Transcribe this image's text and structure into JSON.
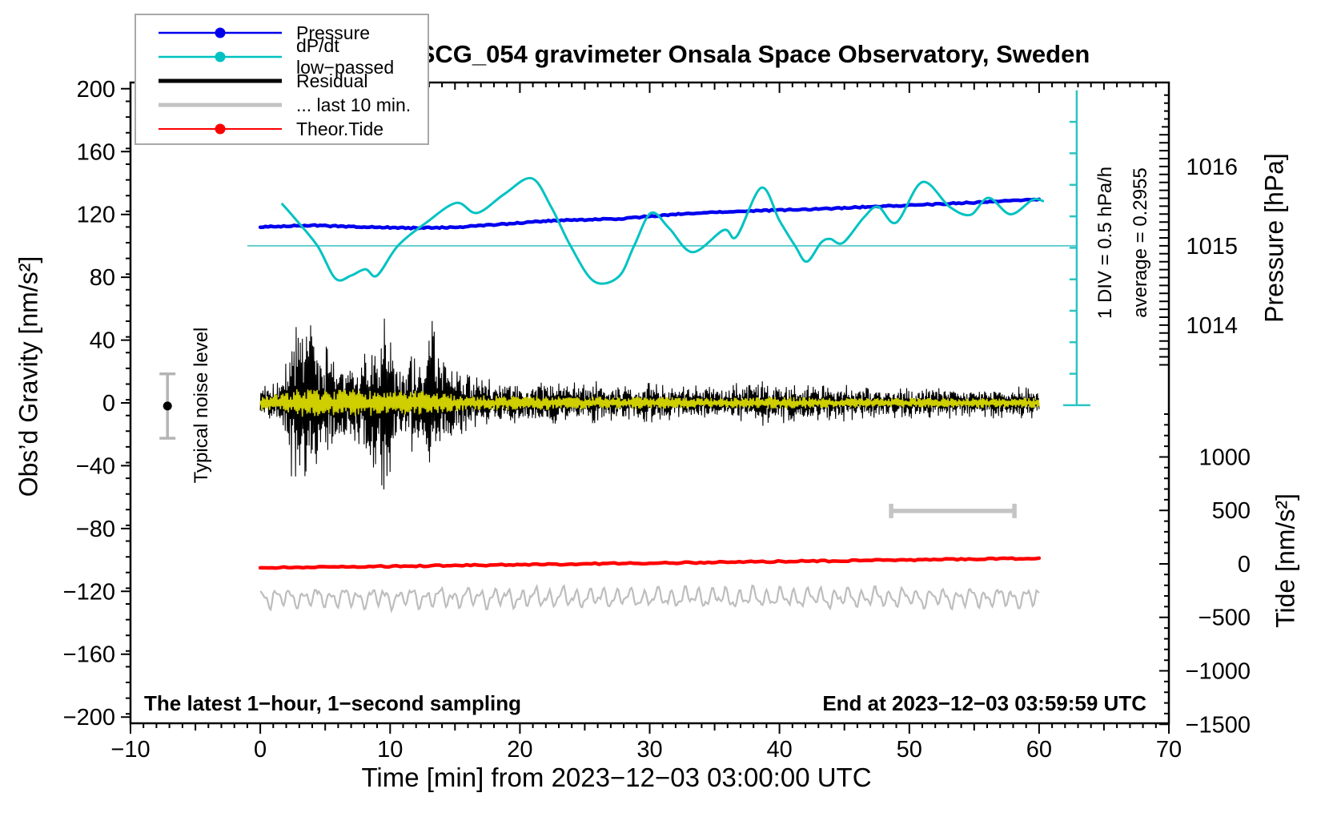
{
  "title": "SCG_054 gravimeter Onsala Space Observatory, Sweden",
  "annotations": {
    "sampling": "The latest 1−hour, 1−second sampling",
    "end_time": "End at 2023−12−03 03:59:59 UTC",
    "div_scale": "1 DIV = 0.5 hPa/h",
    "average": "average = 0.2955",
    "noise_label": "Typical noise level"
  },
  "legend": {
    "items": [
      {
        "label": "Pressure",
        "color": "#0000ee",
        "width": 2.5,
        "dot": true
      },
      {
        "label": "dP/dt low−passed",
        "color": "#00c2c2",
        "width": 2.5,
        "dot": true
      },
      {
        "label": "Residual",
        "color": "#000000",
        "width": 5,
        "dot": false
      },
      {
        "label": "... last 10 min.",
        "color": "#c3c3c3",
        "width": 5,
        "dot": false
      },
      {
        "label": "Theor.Tide",
        "color": "#ff0000",
        "width": 2,
        "dot": true
      }
    ]
  },
  "chart_data": {
    "type": "line",
    "title": "SCG_054 gravimeter Onsala Space Observatory, Sweden",
    "xlabel": "Time [min] from 2023−12−03 03:00:00 UTC",
    "x_axis": {
      "min": -10,
      "max": 70,
      "majors": [
        -10,
        0,
        10,
        20,
        30,
        40,
        50,
        60,
        70
      ],
      "medium_step": 5,
      "minor_step": 1
    },
    "gravity_axis": {
      "label": "Obs’d Gravity [nm/s²]",
      "min": -204,
      "max": 204,
      "majors": [
        -200,
        -160,
        -120,
        -80,
        -40,
        0,
        40,
        80,
        120,
        160,
        200
      ],
      "minor_step": 10
    },
    "pressure_axis": {
      "label": "Pressure [hPa]",
      "majors": [
        1016,
        1015,
        1014
      ],
      "minor_step": 0.1,
      "medium_step": 0.5,
      "minor_min": 1013.5,
      "minor_max": 1016.9,
      "anchor_value": 1015,
      "anchor_gravity": 100,
      "gravity_per_hpa": 50.5
    },
    "tide_axis": {
      "label": "Tide [nm/s²]",
      "majors": [
        1000,
        500,
        0,
        -500,
        -1000,
        -1500
      ],
      "minor_step": 100,
      "minor_min": -1400,
      "minor_max": 1400,
      "anchor_value": 0,
      "anchor_gravity": -102.5,
      "gravity_per_unit": 0.0681
    },
    "series": {
      "pressure": {
        "name": "Pressure",
        "color": "#0000ee",
        "width": 4.5,
        "unit": "hPa",
        "points": [
          [
            0,
            1015.238
          ],
          [
            2,
            1015.248
          ],
          [
            4,
            1015.257
          ],
          [
            6,
            1015.248
          ],
          [
            8,
            1015.238
          ],
          [
            10,
            1015.23
          ],
          [
            12,
            1015.224
          ],
          [
            14,
            1015.23
          ],
          [
            16,
            1015.244
          ],
          [
            18,
            1015.265
          ],
          [
            20,
            1015.289
          ],
          [
            22,
            1015.313
          ],
          [
            24,
            1015.325
          ],
          [
            26,
            1015.333
          ],
          [
            28,
            1015.343
          ],
          [
            30,
            1015.372
          ],
          [
            32,
            1015.396
          ],
          [
            34,
            1015.416
          ],
          [
            36,
            1015.426
          ],
          [
            38,
            1015.44
          ],
          [
            40,
            1015.451
          ],
          [
            42,
            1015.459
          ],
          [
            44,
            1015.471
          ],
          [
            46,
            1015.485
          ],
          [
            48,
            1015.499
          ],
          [
            50,
            1015.511
          ],
          [
            52,
            1015.525
          ],
          [
            54,
            1015.539
          ],
          [
            56,
            1015.554
          ],
          [
            58,
            1015.57
          ],
          [
            59,
            1015.578
          ],
          [
            60,
            1015.586
          ]
        ]
      },
      "dpdt": {
        "name": "dP/dt low−passed",
        "color": "#00c2c2",
        "width": 3,
        "unit": "hPa/h",
        "zero_gravity": 100,
        "gravity_per_hpa_per_h": 40.2,
        "points": [
          [
            1.7,
            0.66
          ],
          [
            2.6,
            0.45
          ],
          [
            4.4,
            0.0
          ],
          [
            5.8,
            -0.52
          ],
          [
            7.0,
            -0.47
          ],
          [
            8.1,
            -0.37
          ],
          [
            9.0,
            -0.47
          ],
          [
            10.6,
            0.0
          ],
          [
            12.8,
            0.37
          ],
          [
            15.1,
            0.68
          ],
          [
            16.7,
            0.52
          ],
          [
            18.8,
            0.82
          ],
          [
            20.9,
            1.07
          ],
          [
            22.4,
            0.62
          ],
          [
            23.9,
            0.0
          ],
          [
            25.7,
            -0.56
          ],
          [
            27.6,
            -0.49
          ],
          [
            28.8,
            0.0
          ],
          [
            30.1,
            0.52
          ],
          [
            31.5,
            0.28
          ],
          [
            33.3,
            -0.1
          ],
          [
            35.7,
            0.25
          ],
          [
            36.7,
            0.15
          ],
          [
            38.6,
            0.92
          ],
          [
            40.0,
            0.4
          ],
          [
            41.2,
            0.0
          ],
          [
            42.1,
            -0.25
          ],
          [
            43.2,
            0.05
          ],
          [
            43.9,
            0.11
          ],
          [
            44.9,
            0.05
          ],
          [
            46.5,
            0.45
          ],
          [
            47.6,
            0.62
          ],
          [
            49.0,
            0.37
          ],
          [
            51.0,
            1.01
          ],
          [
            53.1,
            0.62
          ],
          [
            54.7,
            0.49
          ],
          [
            56.1,
            0.76
          ],
          [
            57.8,
            0.5
          ],
          [
            59.5,
            0.73
          ],
          [
            60.3,
            0.71
          ]
        ]
      },
      "residual": {
        "name": "Residual",
        "color": "#000000",
        "width": 1.1,
        "unit": "nm/s²",
        "center": 0,
        "amplitude_envelope": [
          [
            0,
            12
          ],
          [
            1.5,
            14
          ],
          [
            2,
            30
          ],
          [
            2.5,
            55
          ],
          [
            3,
            83
          ],
          [
            3.5,
            70
          ],
          [
            4,
            60
          ],
          [
            4.5,
            45
          ],
          [
            5,
            38
          ],
          [
            5.5,
            32
          ],
          [
            6,
            28
          ],
          [
            6.5,
            30
          ],
          [
            7,
            25
          ],
          [
            7.5,
            28
          ],
          [
            8,
            45
          ],
          [
            8.5,
            62
          ],
          [
            9,
            55
          ],
          [
            9.5,
            60
          ],
          [
            10,
            45
          ],
          [
            10.5,
            30
          ],
          [
            11,
            28
          ],
          [
            11.5,
            35
          ],
          [
            12,
            30
          ],
          [
            12.5,
            40
          ],
          [
            13,
            62
          ],
          [
            13.5,
            50
          ],
          [
            14,
            40
          ],
          [
            14.5,
            30
          ],
          [
            15,
            22
          ],
          [
            16,
            18
          ],
          [
            17,
            16
          ],
          [
            18,
            15
          ],
          [
            19,
            17
          ],
          [
            20,
            15
          ],
          [
            21,
            14
          ],
          [
            22,
            16
          ],
          [
            23,
            18
          ],
          [
            24,
            15
          ],
          [
            25,
            13
          ],
          [
            26,
            14
          ],
          [
            27,
            12
          ],
          [
            28,
            13
          ],
          [
            29,
            12
          ],
          [
            30,
            13
          ],
          [
            31,
            12
          ],
          [
            32,
            11
          ],
          [
            33,
            13
          ],
          [
            34,
            12
          ],
          [
            35,
            11
          ],
          [
            36,
            12
          ],
          [
            37,
            13
          ],
          [
            38,
            12
          ],
          [
            39,
            16
          ],
          [
            40,
            14
          ],
          [
            41,
            12
          ],
          [
            42,
            13
          ],
          [
            43,
            12
          ],
          [
            44,
            11
          ],
          [
            45,
            12
          ],
          [
            46,
            11
          ],
          [
            47,
            10
          ],
          [
            48,
            11
          ],
          [
            49,
            10
          ],
          [
            50,
            11
          ],
          [
            51,
            10
          ],
          [
            52,
            10
          ],
          [
            53,
            11
          ],
          [
            54,
            10
          ],
          [
            55,
            10
          ],
          [
            56,
            11
          ],
          [
            57,
            10
          ],
          [
            58,
            11
          ],
          [
            59,
            10
          ],
          [
            60,
            10
          ]
        ]
      },
      "residual_lowpass": {
        "name": "Residual low-passed",
        "color": "#cfcf00",
        "width": 1.6,
        "unit": "nm/s²",
        "center": 0,
        "amplitude_envelope": [
          [
            0,
            6
          ],
          [
            2,
            8
          ],
          [
            3,
            12
          ],
          [
            5,
            10
          ],
          [
            8,
            11
          ],
          [
            10,
            9
          ],
          [
            12,
            10
          ],
          [
            14,
            8
          ],
          [
            16,
            6
          ],
          [
            20,
            6
          ],
          [
            25,
            5
          ],
          [
            30,
            5
          ],
          [
            35,
            4
          ],
          [
            40,
            5
          ],
          [
            45,
            4
          ],
          [
            50,
            4
          ],
          [
            55,
            4
          ],
          [
            60,
            4
          ]
        ]
      },
      "last10": {
        "name": "... last 10 min.",
        "color": "#bdbdbd",
        "width": 2.2,
        "unit": "nm/s²",
        "center_gravity": -124,
        "amplitude": 6.5
      },
      "tide": {
        "name": "Theor.Tide",
        "color": "#ff0000",
        "width": 4.5,
        "unit": "nm/s² (tide axis)",
        "points": [
          [
            0,
            -37
          ],
          [
            5,
            -30
          ],
          [
            10,
            -23
          ],
          [
            15,
            -15.5
          ],
          [
            20,
            -8
          ],
          [
            25,
            -0.5
          ],
          [
            30,
            7
          ],
          [
            35,
            14.5
          ],
          [
            40,
            22
          ],
          [
            45,
            29.5
          ],
          [
            50,
            37
          ],
          [
            55,
            44.5
          ],
          [
            60,
            52
          ]
        ]
      }
    },
    "markers": {
      "noise_bar": {
        "t": -7.15,
        "center_gravity": -2,
        "half_range": 20.5
      },
      "div_scale_bar": {
        "t": 62.9,
        "top_gravity": 199,
        "bottom_gravity": -1.5,
        "divisions": 10,
        "div_value_hpa_per_h": 0.5
      },
      "dpdt_zero_line": {
        "gravity": 100,
        "t_from": -1.0,
        "t_to": 62.9
      },
      "last10_extent_bar": {
        "t_from": 48.6,
        "t_to": 58.1,
        "gravity": -68.8
      }
    }
  }
}
